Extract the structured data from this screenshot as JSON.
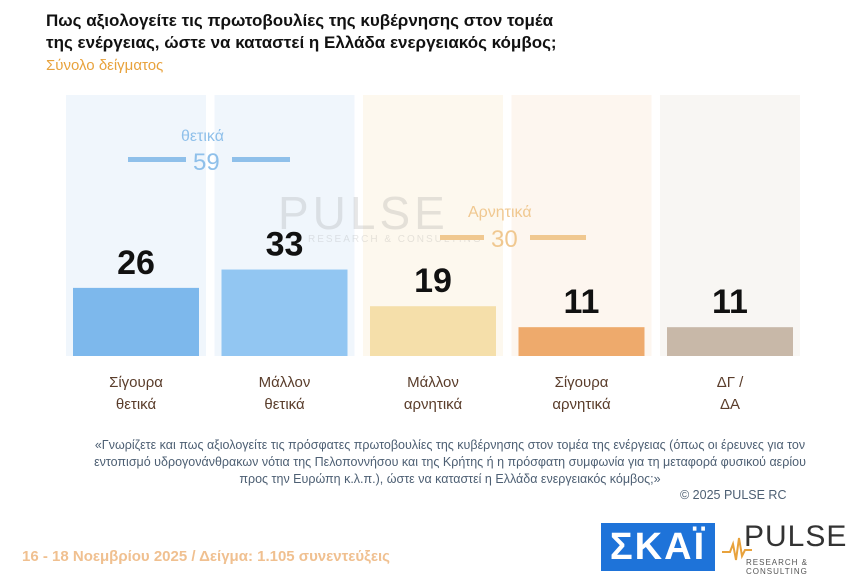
{
  "title_line1": "Πως αξιολογείτε τις πρωτοβουλίες της κυβέρνησης στον τομέα",
  "title_line2": "της ενέργειας, ώστε να καταστεί η Ελλάδα ενεργειακός κόμβος;",
  "subtitle": "Σύνολο δείγματος",
  "watermark": {
    "big": "PULSE",
    "small": "RESEARCH & CONSULTING"
  },
  "groups": {
    "positive": {
      "label": "θετικά",
      "value": "59",
      "color": "#8fc0ea"
    },
    "negative": {
      "label": "Αρνητικά",
      "value": "30",
      "color": "#f0c890"
    }
  },
  "footnote": "«Γνωρίζετε και πως αξιολογείτε τις πρόσφατες πρωτοβουλίες της κυβέρνησης στον τομέα της ενέργειας (όπως οι έρευνες για τον εντοπισμό υδρογονάνθρακων νότια της Πελοποννήσου και της Κρήτης ή η πρόσφατη συμφωνία για τη μεταφορά φυσικού αερίου προς την Ευρώπη κ.λ.π.), ώστε να καταστεί η Ελλάδα ενεργειακός κόμβος;»",
  "copyright": "©  2025  PULSE RC",
  "date_line": "16 - 18 Νοεμβρίου 2025  /  Δείγμα:  1.105 συνεντεύξεις",
  "logos": {
    "skai": "ΣΚΑΪ",
    "pulse": "PULSE",
    "pulse_sub": "RESEARCH & CONSULTING"
  },
  "chart_data": {
    "type": "bar",
    "categories": [
      "Σίγουρα θετικά",
      "Μάλλον θετικά",
      "Μάλλον αρνητικά",
      "Σίγουρα αρνητικά",
      "ΔΓ / ΔΑ"
    ],
    "category_lines": [
      [
        "Σίγουρα",
        "θετικά"
      ],
      [
        "Μάλλον",
        "θετικά"
      ],
      [
        "Μάλλον",
        "αρνητικά"
      ],
      [
        "Σίγουρα",
        "αρνητικά"
      ],
      [
        "ΔΓ /",
        "ΔΑ"
      ]
    ],
    "values": [
      26,
      33,
      19,
      11,
      11
    ],
    "colors": [
      "#7db8ec",
      "#92c6f2",
      "#f5dfaa",
      "#eeaa6c",
      "#c8b8a8"
    ],
    "ylim": [
      0,
      100
    ]
  }
}
